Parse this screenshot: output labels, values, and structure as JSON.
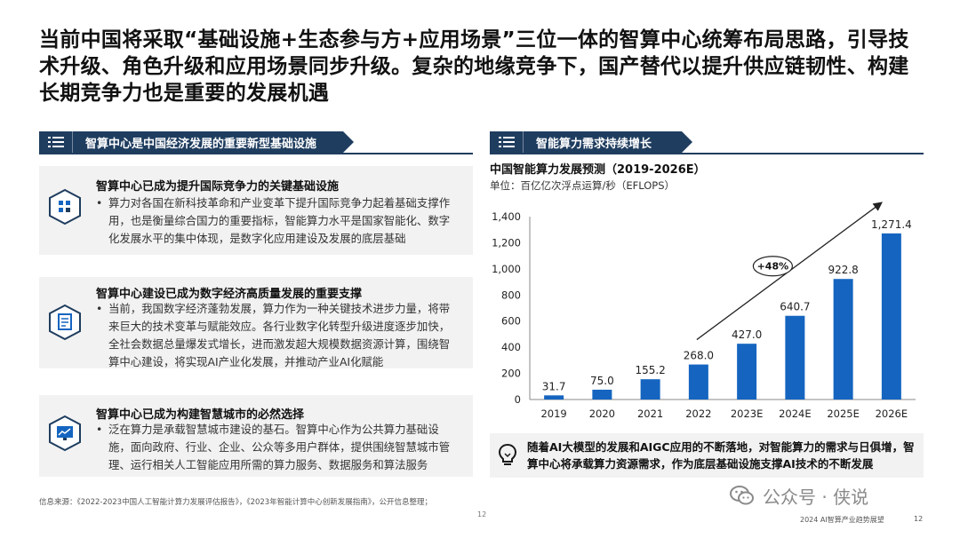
{
  "headline": "当前中国将采取“基础设施+生态参与方+应用场景”三位一体的智算中心统筹布局思路，引导技术升级、角色升级和应用场景同步升级。复杂的地缘竞争下，国产替代以提升供应链韧性、构建长期竞争力也是重要的发展机遇",
  "left_section": {
    "title": "智算中心是中国经济发展的重要新型基础设施",
    "cards": [
      {
        "icon": "cube-network-icon",
        "title": "智算中心已成为提升国际竞争力的关键基础设施",
        "bullet": "•",
        "body": "算力对各国在新科技革命和产业变革下提升国际竞争力起着基础支撑作用，也是衡量综合国力的重要指标，智能算力水平是国家智能化、数字化发展水平的集中体现，是数字化应用建设及发展的底层基础"
      },
      {
        "icon": "document-icon",
        "title": "智算中心建设已成为数字经济高质量发展的重要支撑",
        "bullet": "•",
        "body": "当前，我国数字经济蓬勃发展，算力作为一种关键技术进步力量，将带来巨大的技术变革与赋能效应。各行业数字化转型升级进度逐步加快，全社会数据总量爆发式增长，进而激发超大规模数据资源计算，围绕智算中心建设，将实现AI产业化发展，并推动产业AI化赋能"
      },
      {
        "icon": "city-screen-icon",
        "title": "智算中心已成为构建智慧城市的必然选择",
        "bullet": "•",
        "body": "泛在算力是承载智慧城市建设的基石。智算中心作为公共算力基础设施，面向政府、行业、企业、公众等多用户群体，提供围绕智慧城市管理、运行相关人工智能应用所需的算力服务、数据服务和算法服务"
      }
    ]
  },
  "right_section": {
    "title": "智能算力需求持续增长",
    "callout": "随着AI大模型的发展和AIGC应用的不断落地，对智能算力的需求与日俱增，智算中心将承载算力资源需求，作为底层基础设施支撑AI技术的不断发展"
  },
  "chart_data": {
    "type": "bar",
    "title": "中国智能算力发展预测（2019-2026E）",
    "unit": "单位：百亿亿次浮点运算/秒（EFLOPS）",
    "categories": [
      "2019",
      "2020",
      "2021",
      "2022",
      "2023E",
      "2024E",
      "2025E",
      "2026E"
    ],
    "values": [
      31.7,
      75.0,
      155.2,
      268.0,
      427.0,
      640.7,
      922.8,
      1271.4
    ],
    "value_labels": [
      "31.7",
      "75.0",
      "155.2",
      "268.0",
      "427.0",
      "640.7",
      "922.8",
      "1,271.4"
    ],
    "yticks": [
      "0",
      "200",
      "400",
      "600",
      "800",
      "1,000",
      "1,200",
      "1,400"
    ],
    "ylim": [
      0,
      1400
    ],
    "growth_annotation": "+48%",
    "bar_color": "#1565c0",
    "grid": false
  },
  "footer": {
    "source": "信息来源：《2022-2023中国人工智能计算力发展评估报告》，《2023年智能计算中心创新发展指南》，公开信息整理；",
    "page_center": "12",
    "report_name": "2024 AI智算产业趋势展望",
    "page_right": "12",
    "watermark": "公众号 · 侠说"
  }
}
